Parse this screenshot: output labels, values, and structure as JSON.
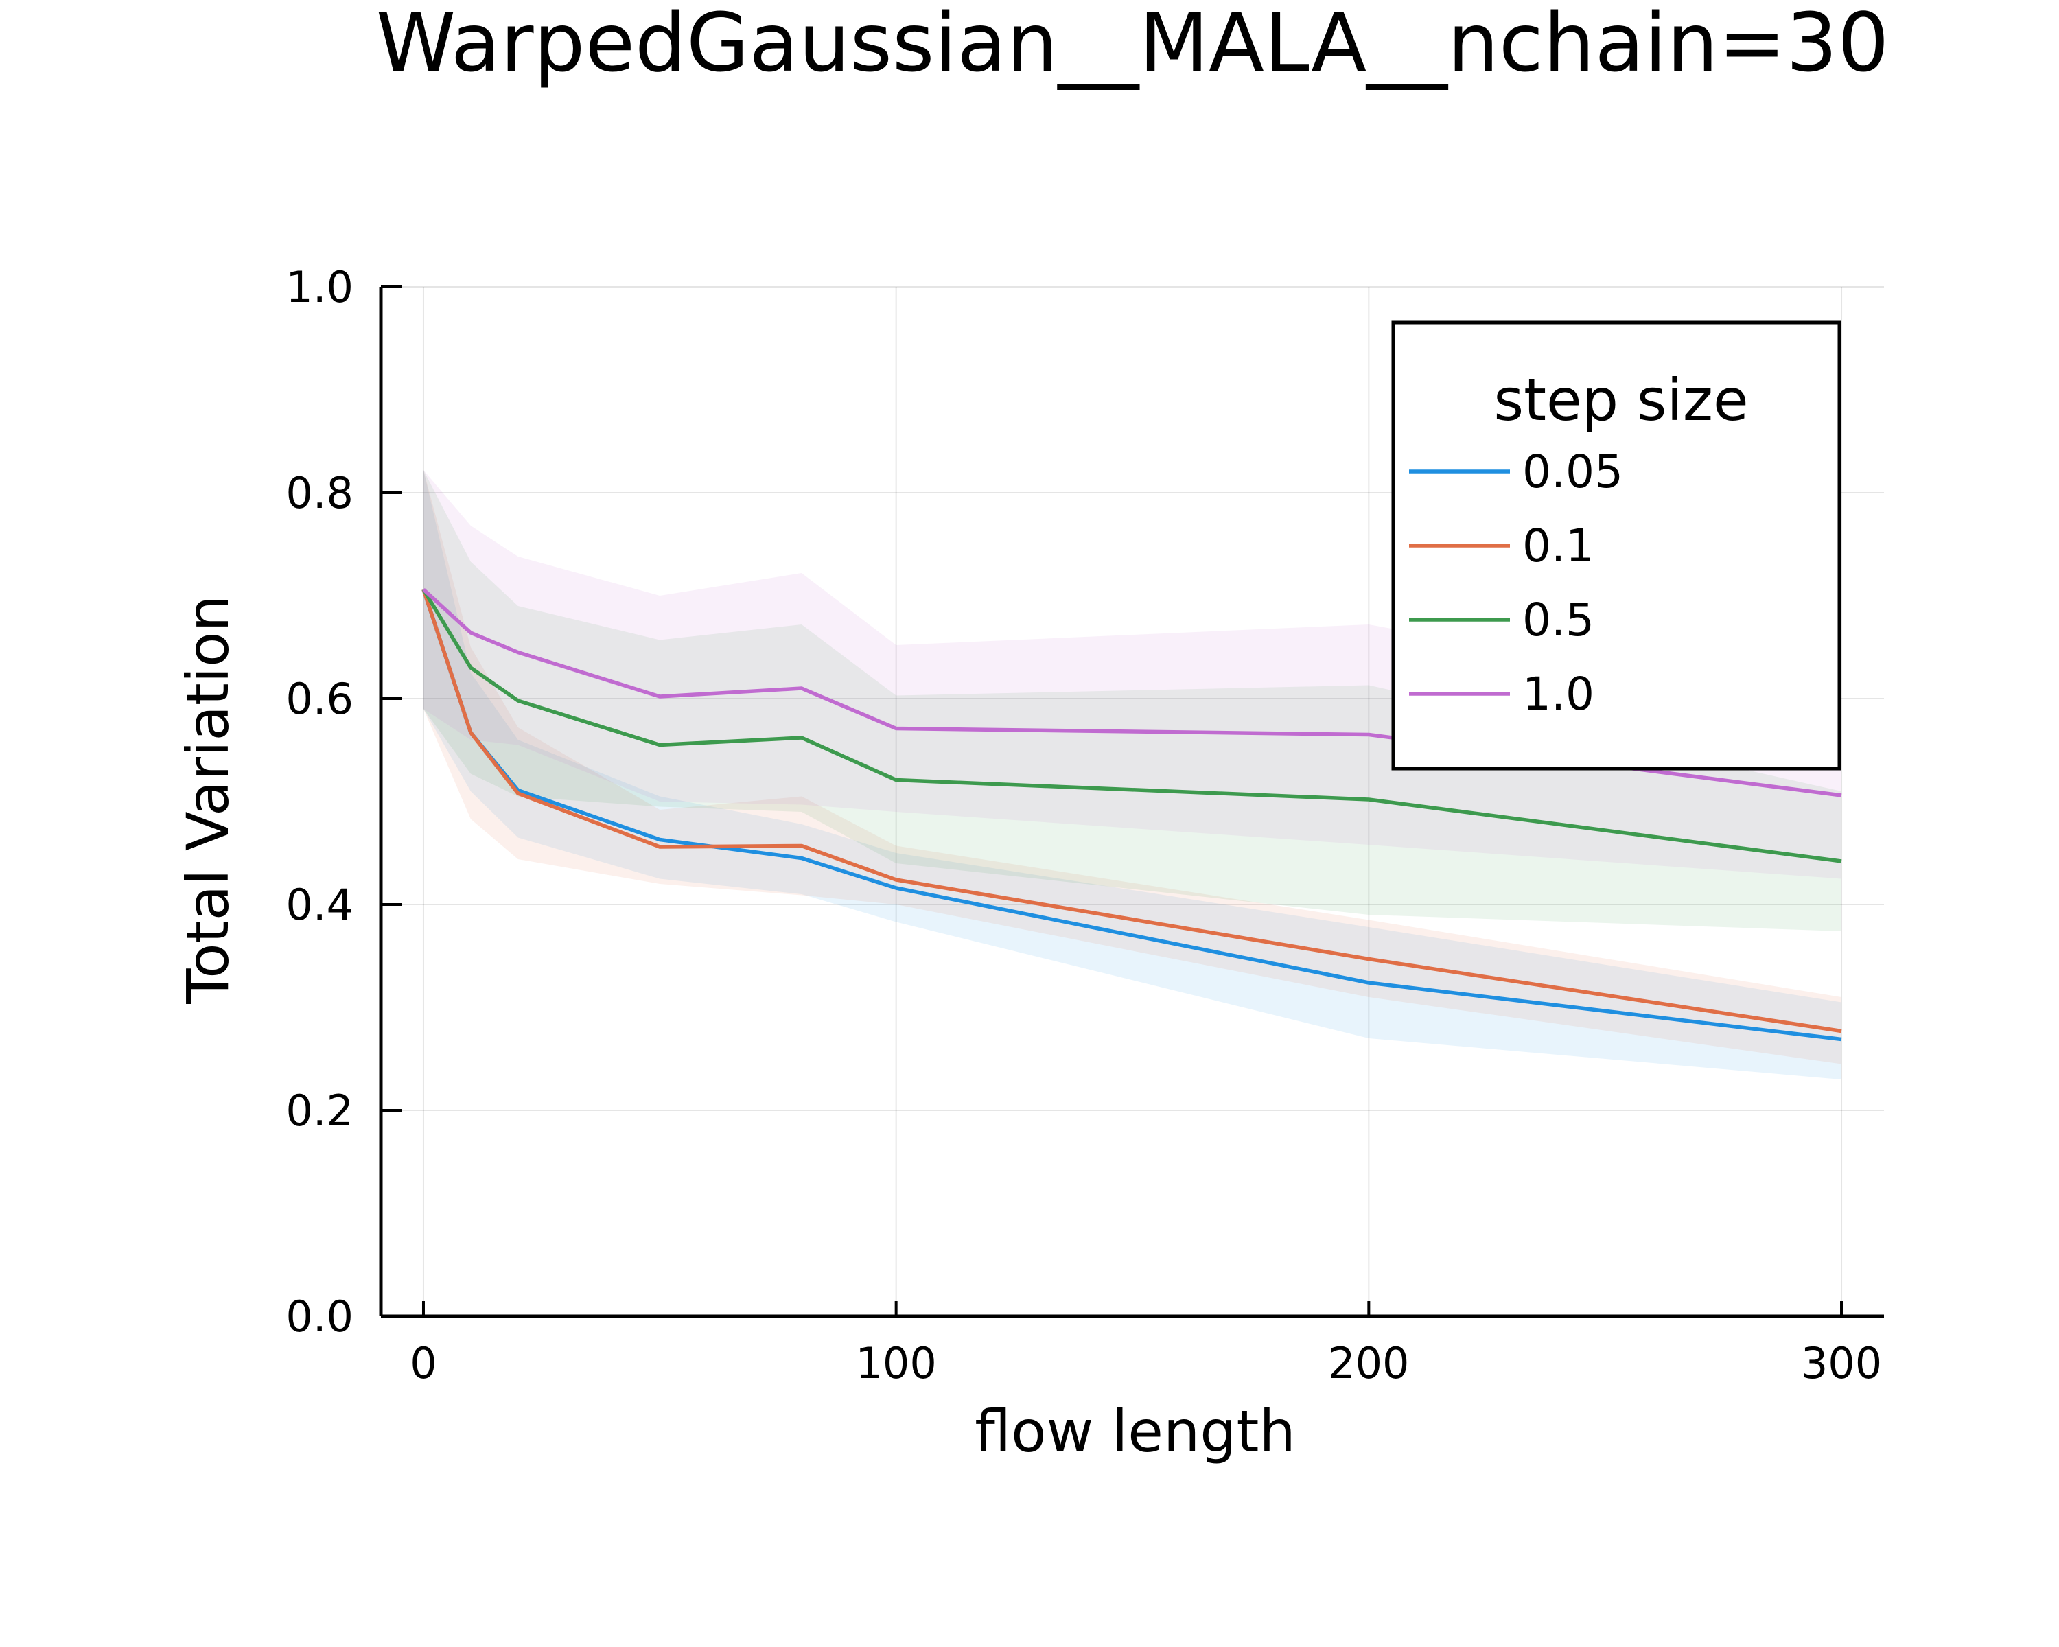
{
  "chart_data": {
    "type": "line",
    "title": "WarpedGaussian__MALA__nchain=30",
    "xlabel": "flow length",
    "ylabel": "Total Variation",
    "xlim": [
      -9,
      309
    ],
    "ylim": [
      0,
      1
    ],
    "x_ticks": [
      0,
      100,
      200,
      300
    ],
    "x_tick_labels": [
      "0",
      "100",
      "200",
      "300"
    ],
    "y_ticks": [
      0,
      0.2,
      0.4,
      0.6,
      0.8,
      1.0
    ],
    "y_tick_labels": [
      "0.0",
      "0.2",
      "0.4",
      "0.6",
      "0.8",
      "1.0"
    ],
    "grid": true,
    "legend": {
      "title": "step size",
      "position": "top-right"
    },
    "x": [
      0,
      10,
      20,
      50,
      80,
      100,
      200,
      300
    ],
    "series": [
      {
        "name": "0.05",
        "color": "#1f8fe0",
        "values": [
          0.706,
          0.567,
          0.511,
          0.463,
          0.445,
          0.416,
          0.324,
          0.269
        ],
        "lower": [
          0.59,
          0.51,
          0.465,
          0.425,
          0.41,
          0.383,
          0.27,
          0.23
        ],
        "upper": [
          0.822,
          0.625,
          0.56,
          0.505,
          0.478,
          0.45,
          0.378,
          0.305
        ]
      },
      {
        "name": "0.1",
        "color": "#e06e46",
        "values": [
          0.706,
          0.567,
          0.508,
          0.456,
          0.457,
          0.424,
          0.347,
          0.277
        ],
        "lower": [
          0.59,
          0.483,
          0.444,
          0.42,
          0.409,
          0.4,
          0.31,
          0.245
        ],
        "upper": [
          0.822,
          0.65,
          0.572,
          0.492,
          0.505,
          0.457,
          0.385,
          0.31
        ]
      },
      {
        "name": "0.5",
        "color": "#3d9a4e",
        "values": [
          0.706,
          0.63,
          0.598,
          0.555,
          0.562,
          0.521,
          0.502,
          0.442
        ],
        "lower": [
          0.59,
          0.527,
          0.505,
          0.495,
          0.49,
          0.44,
          0.39,
          0.374
        ],
        "upper": [
          0.822,
          0.733,
          0.69,
          0.657,
          0.672,
          0.603,
          0.613,
          0.51
        ]
      },
      {
        "name": "1.0",
        "color": "#c06bd0",
        "values": [
          0.706,
          0.664,
          0.645,
          0.602,
          0.61,
          0.571,
          0.565,
          0.506
        ],
        "lower": [
          0.59,
          0.56,
          0.555,
          0.5,
          0.497,
          0.49,
          0.458,
          0.425
        ],
        "upper": [
          0.822,
          0.768,
          0.738,
          0.7,
          0.722,
          0.652,
          0.672,
          0.588
        ]
      }
    ]
  }
}
